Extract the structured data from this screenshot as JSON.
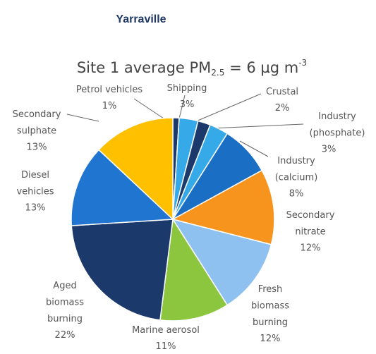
{
  "chart_data": {
    "type": "pie",
    "title": "Yarraville",
    "subtitle": [
      "Site 1 average PM",
      "2.5",
      " = 6 µg m",
      "-3"
    ],
    "categories": [
      "Petrol vehicles",
      "Shipping",
      "Crustal",
      "Industry (phosphate)",
      "Industry (calcium)",
      "Secondary nitrate",
      "Fresh biomass burning",
      "Marine aerosol",
      "Aged biomass burning",
      "Diesel vehicles",
      "Secondary sulphate"
    ],
    "values": [
      1,
      3,
      2,
      3,
      8,
      12,
      12,
      11,
      22,
      13,
      13
    ],
    "value_labels": [
      "1%",
      "3%",
      "2%",
      "3%",
      "8%",
      "12%",
      "12%",
      "11%",
      "22%",
      "13%",
      "13%"
    ],
    "colors": [
      "#1b3a6b",
      "#36a9e8",
      "#1b3a6b",
      "#36a9e8",
      "#1a6fc4",
      "#f7941d",
      "#8fc1f0",
      "#8cc63f",
      "#1b3a6b",
      "#1f75d0",
      "#ffc000"
    ]
  }
}
